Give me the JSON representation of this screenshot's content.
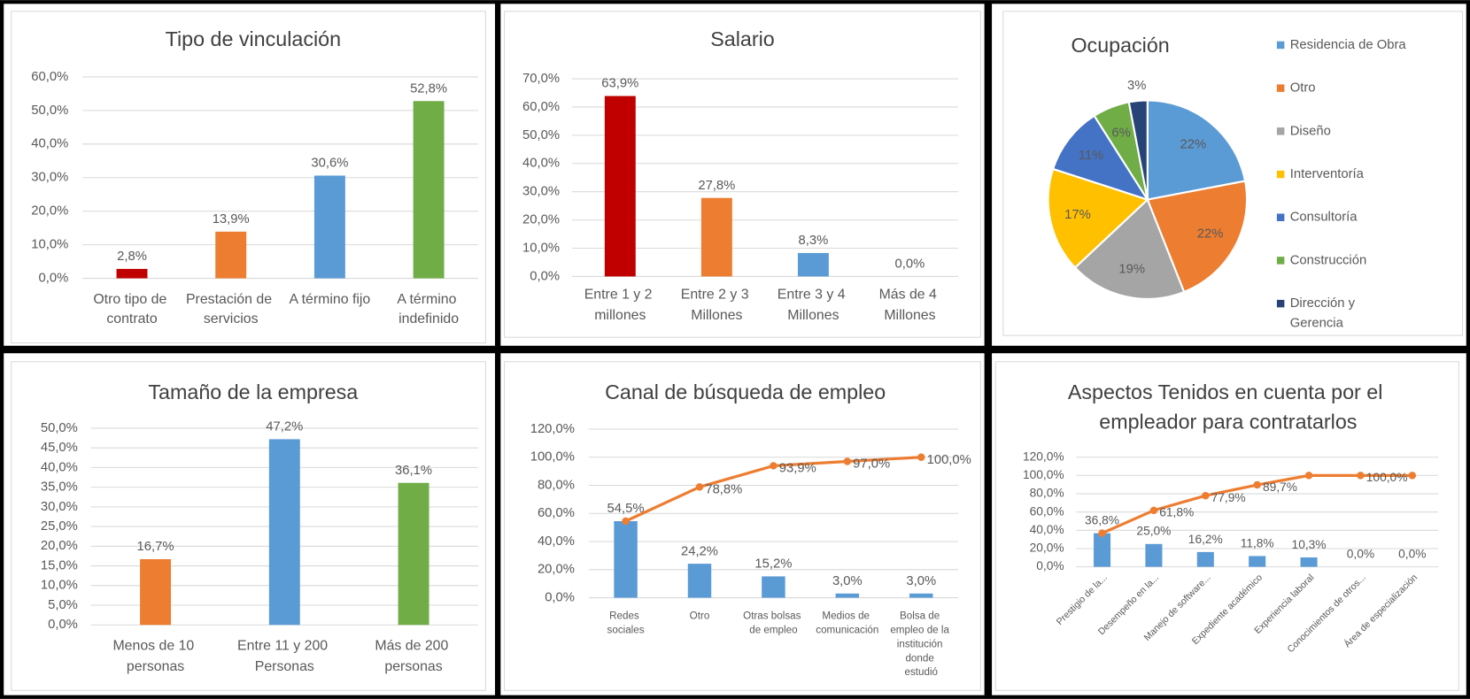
{
  "chart_data": [
    {
      "type": "bar",
      "title": "Tipo de vinculación",
      "categories": [
        "Otro tipo de contrato",
        "Prestación de servicios",
        "A término fijo",
        "A término indefinido"
      ],
      "values": [
        2.8,
        13.9,
        30.6,
        52.8
      ],
      "value_labels": [
        "2,8%",
        "13,9%",
        "30,6%",
        "52,8%"
      ],
      "colors": [
        "#c00000",
        "#ed7d31",
        "#5b9bd5",
        "#70ad47"
      ],
      "ylim": [
        0,
        60
      ],
      "yticks": [
        {
          "value": 0,
          "label": "0,0%"
        },
        {
          "value": 10,
          "label": "10,0%"
        },
        {
          "value": 20,
          "label": "20,0%"
        },
        {
          "value": 30,
          "label": "30,0%"
        },
        {
          "value": 40,
          "label": "40,0%"
        },
        {
          "value": 50,
          "label": "50,0%"
        },
        {
          "value": 60,
          "label": "60,0%"
        }
      ],
      "grid": true
    },
    {
      "type": "bar",
      "title": "Salario",
      "categories": [
        "Entre 1 y 2 millones",
        "Entre 2 y 3 Millones",
        "Entre 3 y 4 Millones",
        "Más de 4 Millones"
      ],
      "values": [
        63.9,
        27.8,
        8.3,
        0.0
      ],
      "value_labels": [
        "63,9%",
        "27,8%",
        "8,3%",
        "0,0%"
      ],
      "colors": [
        "#c00000",
        "#ed7d31",
        "#5b9bd5",
        "#70ad47"
      ],
      "ylim": [
        0,
        70
      ],
      "yticks": [
        {
          "value": 0,
          "label": "0,0%"
        },
        {
          "value": 10,
          "label": "10,0%"
        },
        {
          "value": 20,
          "label": "20,0%"
        },
        {
          "value": 30,
          "label": "30,0%"
        },
        {
          "value": 40,
          "label": "40,0%"
        },
        {
          "value": 50,
          "label": "50,0%"
        },
        {
          "value": 60,
          "label": "60,0%"
        },
        {
          "value": 70,
          "label": "70,0%"
        }
      ],
      "grid": true
    },
    {
      "type": "pie",
      "title": "Ocupación",
      "labels": [
        "Residencia de Obra",
        "Otro",
        "Diseño",
        "Interventoría",
        "Consultoría",
        "Construcción",
        "Dirección y Gerencia"
      ],
      "values": [
        22,
        22,
        19,
        17,
        11,
        6,
        3
      ],
      "value_labels": [
        "22%",
        "22%",
        "19%",
        "17%",
        "11%",
        "6%",
        "3%"
      ],
      "colors": [
        "#5b9bd5",
        "#ed7d31",
        "#a5a5a5",
        "#ffc000",
        "#4472c4",
        "#70ad47",
        "#264478"
      ],
      "legend": "right"
    },
    {
      "type": "bar",
      "title": "Tamaño de la empresa",
      "categories": [
        "Menos de 10 personas",
        "Entre 11 y 200 Personas",
        "Más de 200 personas"
      ],
      "values": [
        16.7,
        47.2,
        36.1
      ],
      "value_labels": [
        "16,7%",
        "47,2%",
        "36,1%"
      ],
      "colors": [
        "#ed7d31",
        "#5b9bd5",
        "#70ad47"
      ],
      "ylim": [
        0,
        50
      ],
      "yticks": [
        {
          "value": 0,
          "label": "0,0%"
        },
        {
          "value": 5,
          "label": "5,0%"
        },
        {
          "value": 10,
          "label": "10,0%"
        },
        {
          "value": 15,
          "label": "15,0%"
        },
        {
          "value": 20,
          "label": "20,0%"
        },
        {
          "value": 25,
          "label": "25,0%"
        },
        {
          "value": 30,
          "label": "30,0%"
        },
        {
          "value": 35,
          "label": "35,0%"
        },
        {
          "value": 40,
          "label": "40,0%"
        },
        {
          "value": 45,
          "label": "45,0%"
        },
        {
          "value": 50,
          "label": "50,0%"
        }
      ],
      "grid": true
    },
    {
      "type": "combo",
      "title": "Canal de búsqueda de empleo",
      "categories": [
        "Redes sociales",
        "Otro",
        "Otras bolsas de empleo",
        "Medios de comunicación",
        "Bolsa de empleo de la institución donde estudió"
      ],
      "series": [
        {
          "type": "bar",
          "color": "#5b9bd5",
          "values": [
            54.5,
            24.2,
            15.2,
            3.0,
            3.0
          ],
          "value_labels": [
            "54,5%",
            "24,2%",
            "15,2%",
            "3,0%",
            "3,0%"
          ]
        },
        {
          "type": "line",
          "color": "#ed7d31",
          "values": [
            54.5,
            78.8,
            93.9,
            97.0,
            100.0
          ],
          "value_labels": [
            null,
            "78,8%",
            "93,9%",
            "97,0%",
            "100,0%"
          ]
        }
      ],
      "ylim": [
        0,
        120
      ],
      "yticks": [
        {
          "value": 0,
          "label": "0,0%"
        },
        {
          "value": 20,
          "label": "20,0%"
        },
        {
          "value": 40,
          "label": "40,0%"
        },
        {
          "value": 60,
          "label": "60,0%"
        },
        {
          "value": 80,
          "label": "80,0%"
        },
        {
          "value": 100,
          "label": "100,0%"
        },
        {
          "value": 120,
          "label": "120,0%"
        }
      ],
      "grid": true
    },
    {
      "type": "combo",
      "title": "Aspectos Tenidos en cuenta por el empleador para contratarlos",
      "categories": [
        "Prestigio de la...",
        "Desempeño en la...",
        "Manejo de software...",
        "Expediente académico",
        "Experiencia laboral",
        "Conocimientos de otros...",
        "Área de especialización"
      ],
      "series": [
        {
          "type": "bar",
          "color": "#5b9bd5",
          "values": [
            36.8,
            25.0,
            16.2,
            11.8,
            10.3,
            0.0,
            0.0
          ],
          "value_labels": [
            "36,8%",
            "25,0%",
            "16,2%",
            "11,8%",
            "10,3%",
            "0,0%",
            "0,0%"
          ]
        },
        {
          "type": "line",
          "color": "#ed7d31",
          "values": [
            36.8,
            61.8,
            77.9,
            89.7,
            100.0,
            100.0,
            100.0
          ],
          "value_labels": [
            null,
            "61,8%",
            "77,9%",
            "89,7%",
            null,
            "100,0%",
            null
          ]
        }
      ],
      "ylim": [
        0,
        120
      ],
      "yticks": [
        {
          "value": 0,
          "label": "0,0%"
        },
        {
          "value": 20,
          "label": "20,0%"
        },
        {
          "value": 40,
          "label": "40,0%"
        },
        {
          "value": 60,
          "label": "60,0%"
        },
        {
          "value": 80,
          "label": "80,0%"
        },
        {
          "value": 100,
          "label": "100,0%"
        },
        {
          "value": 120,
          "label": "120,0%"
        }
      ],
      "grid": true
    }
  ]
}
